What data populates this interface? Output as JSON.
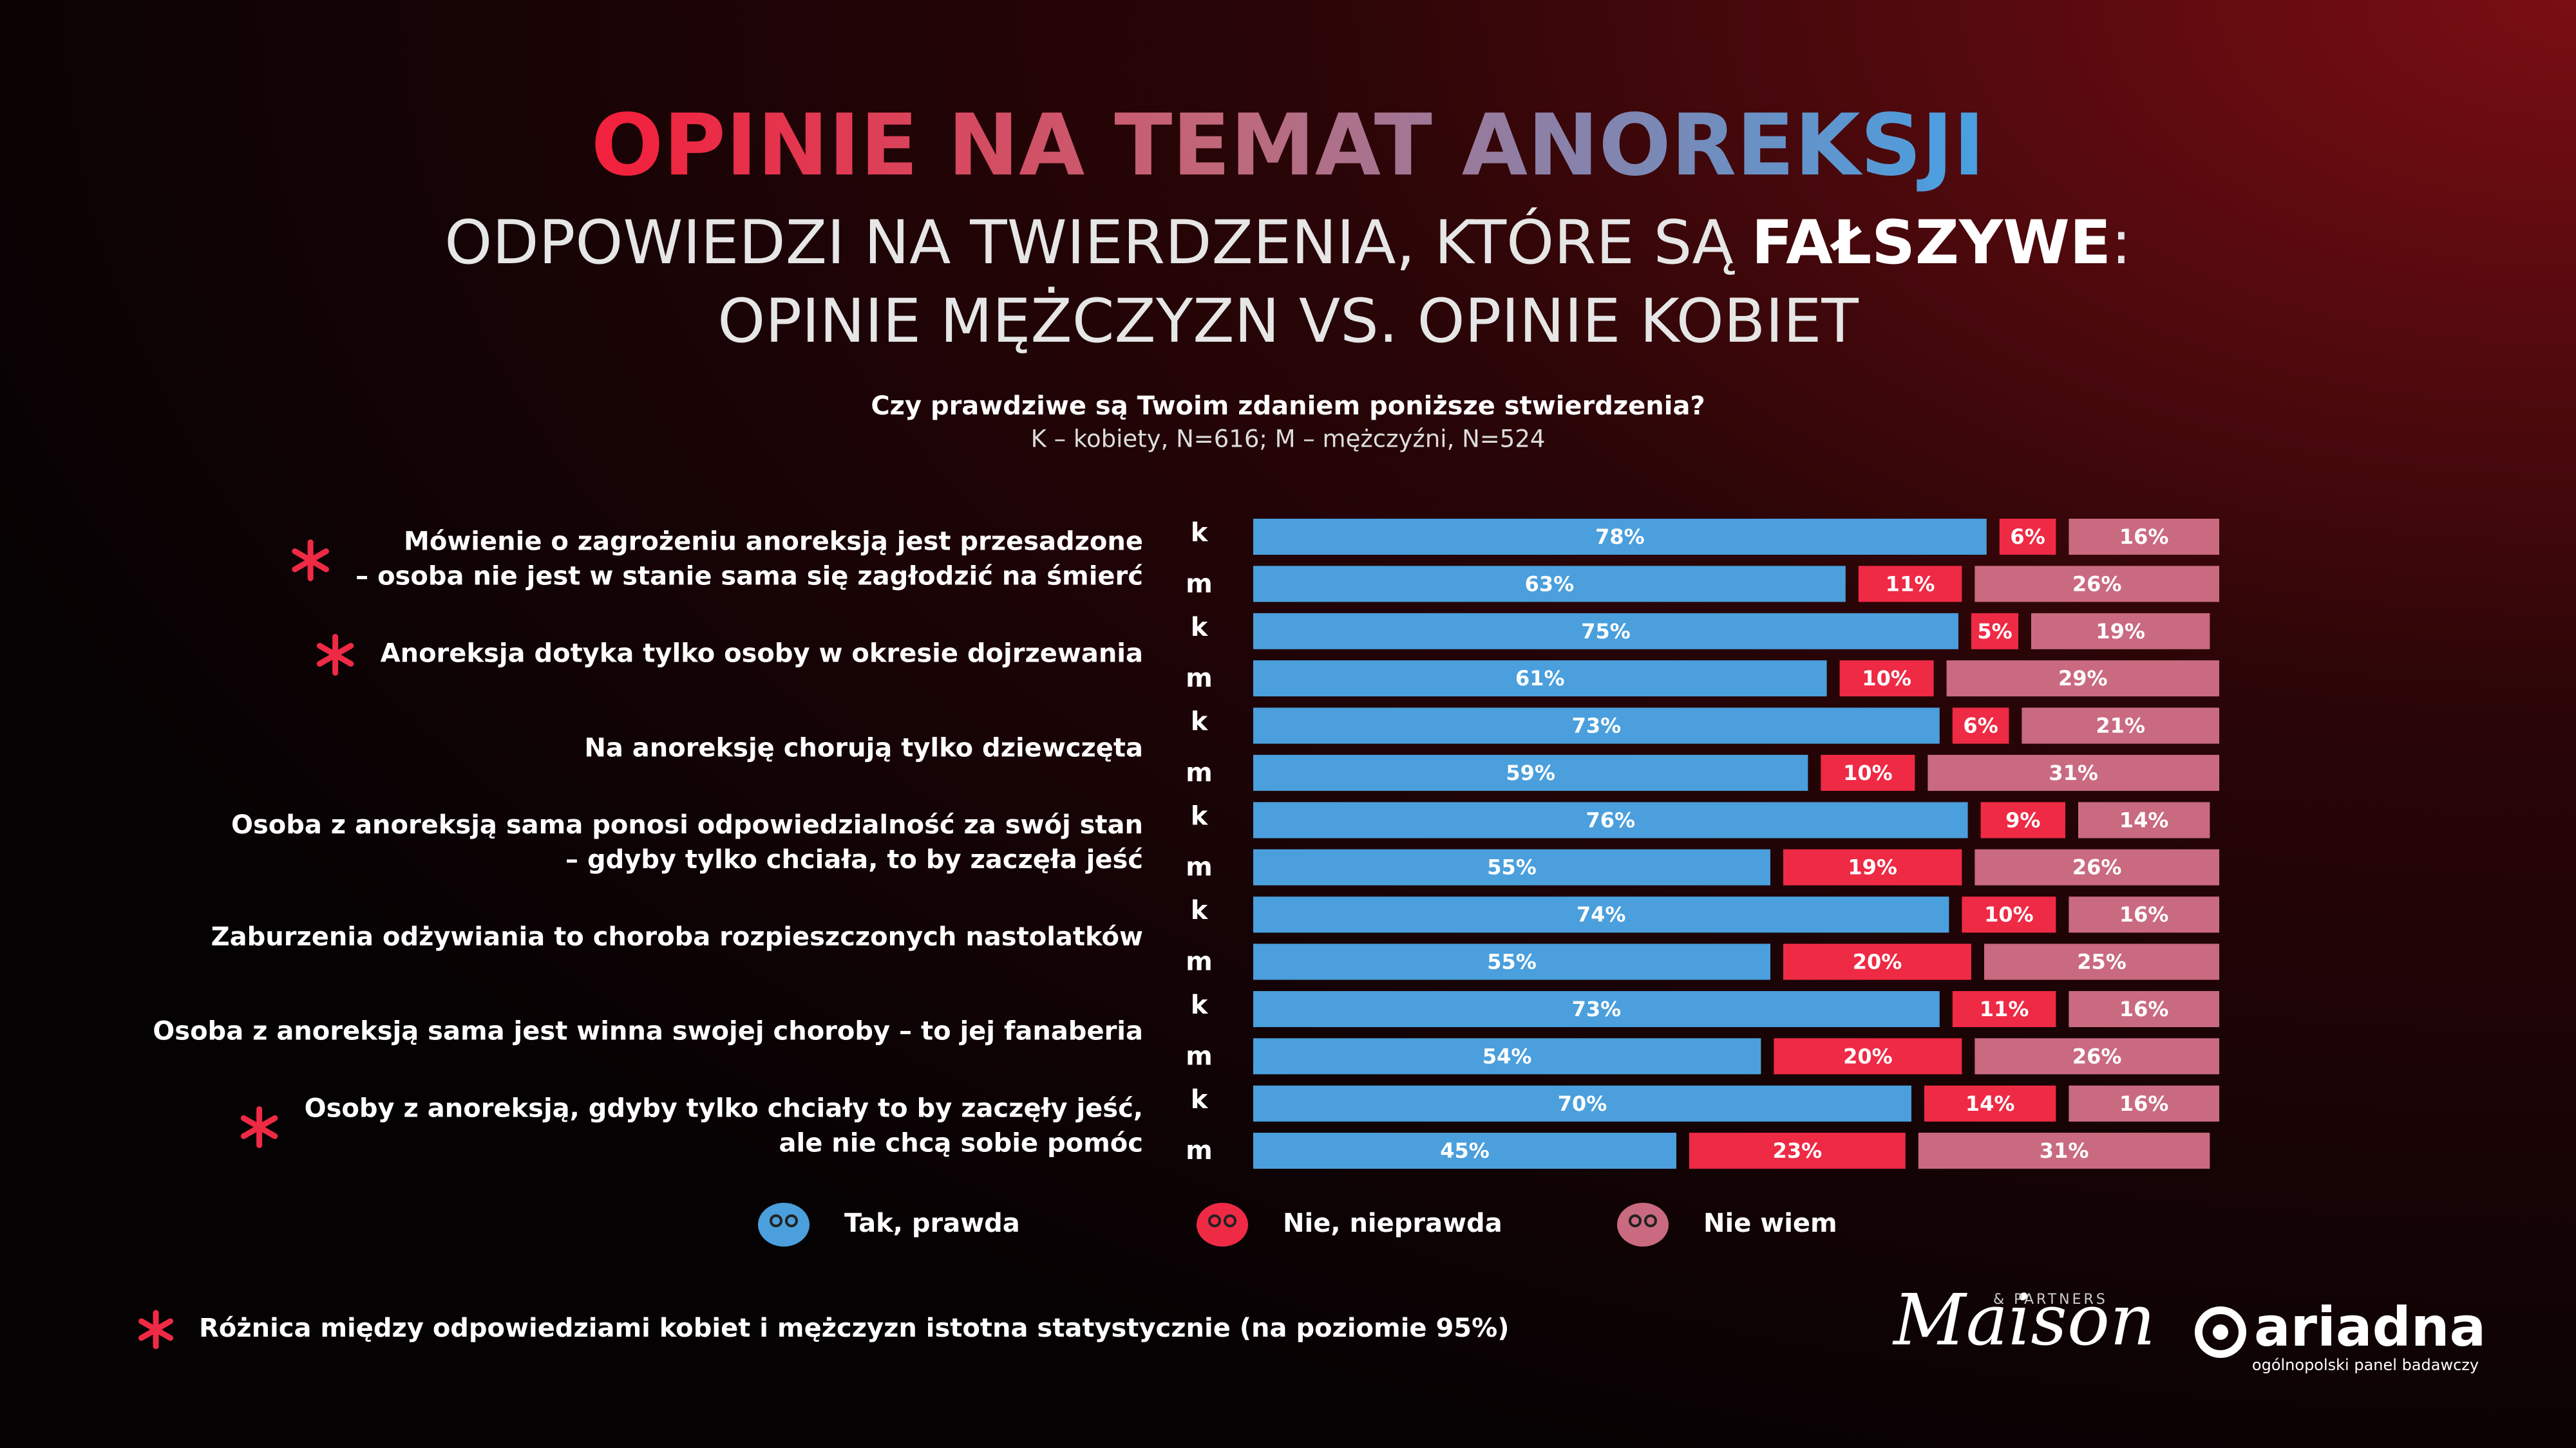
{
  "chart_data": {
    "type": "bar",
    "orientation": "horizontal",
    "stacked": true,
    "title": "OPINIE NA TEMAT ANOREKSJI",
    "subtitle": [
      "ODPOWIEDZI NA TWIERDZENIA, KTÓRE SĄ",
      "FAŁSZYWE",
      ":"
    ],
    "subtitle2": "OPINIE MĘŻCZYZN VS. OPINIE KOBIET",
    "question": "Czy prawdziwe są Twoim zdaniem poniższe stwierdzenia?",
    "note": "K – kobiety, N=616; M – mężczyźni, N=524",
    "categories": [
      "k",
      "m",
      "k",
      "m",
      "k",
      "m",
      "k",
      "m",
      "k",
      "m",
      "k",
      "m",
      "k",
      "m"
    ],
    "groups": [
      {
        "lines": [
          "Mówienie o zagrożeniu anoreksją jest przesadzone",
          "– osoba nie jest w stanie sama się zagłodzić na śmierć"
        ],
        "significant": true
      },
      {
        "lines": [
          "Anoreksja dotyka tylko osoby w okresie dojrzewania"
        ],
        "significant": true
      },
      {
        "lines": [
          "Na anoreksję chorują tylko dziewczęta"
        ],
        "significant": false
      },
      {
        "lines": [
          "Osoba z anoreksją sama ponosi odpowiedzialność za swój stan",
          "– gdyby tylko chciała, to by zaczęła jeść"
        ],
        "significant": false
      },
      {
        "lines": [
          "Zaburzenia odżywiania to choroba rozpieszczonych nastolatków"
        ],
        "significant": false
      },
      {
        "lines": [
          "Osoba z anoreksją sama jest winna swojej choroby – to jej fanaberia"
        ],
        "significant": false
      },
      {
        "lines": [
          "Osoby z anoreksją, gdyby tylko chciały to by zaczęły jeść,",
          "ale nie chcą sobie pomóc"
        ],
        "significant": true
      }
    ],
    "xlim": [
      0,
      100
    ],
    "series": [
      {
        "name": "Tak, prawda",
        "color": "#4a9fdc",
        "values": [
          78,
          63,
          75,
          61,
          73,
          59,
          76,
          55,
          74,
          55,
          73,
          54,
          70,
          45
        ],
        "value_labels": [
          "78%",
          "63%",
          "75%",
          "61%",
          "73%",
          "59%",
          "76%",
          "55%",
          "74%",
          "55%",
          "73%",
          "54%",
          "70%",
          "45%"
        ]
      },
      {
        "name": "Nie, nieprawda",
        "color": "#ee2a45",
        "values": [
          6,
          11,
          5,
          10,
          6,
          10,
          9,
          19,
          10,
          20,
          11,
          20,
          14,
          23
        ],
        "value_labels": [
          "6%",
          "11%",
          "5%",
          "10%",
          "6%",
          "10%",
          "9%",
          "19%",
          "10%",
          "20%",
          "11%",
          "20%",
          "14%",
          "23%"
        ]
      },
      {
        "name": "Nie wiem",
        "color": "#c96a80",
        "values": [
          16,
          26,
          19,
          29,
          21,
          31,
          14,
          26,
          16,
          25,
          16,
          26,
          16,
          31
        ],
        "value_labels": [
          "16%",
          "26%",
          "19%",
          "29%",
          "21%",
          "31%",
          "14%",
          "26%",
          "16%",
          "25%",
          "16%",
          "26%",
          "16%",
          "31%"
        ]
      }
    ],
    "footnote": "Różnica między odpowiedziami kobiet i mężczyzn istotna statystycznie (na poziomie 95%)",
    "logos": {
      "maison": "Maison",
      "partners": "& PARTNERS",
      "ariadna": "ariadna",
      "ariadna_tagline": "ogólnopolski panel badawczy"
    }
  }
}
